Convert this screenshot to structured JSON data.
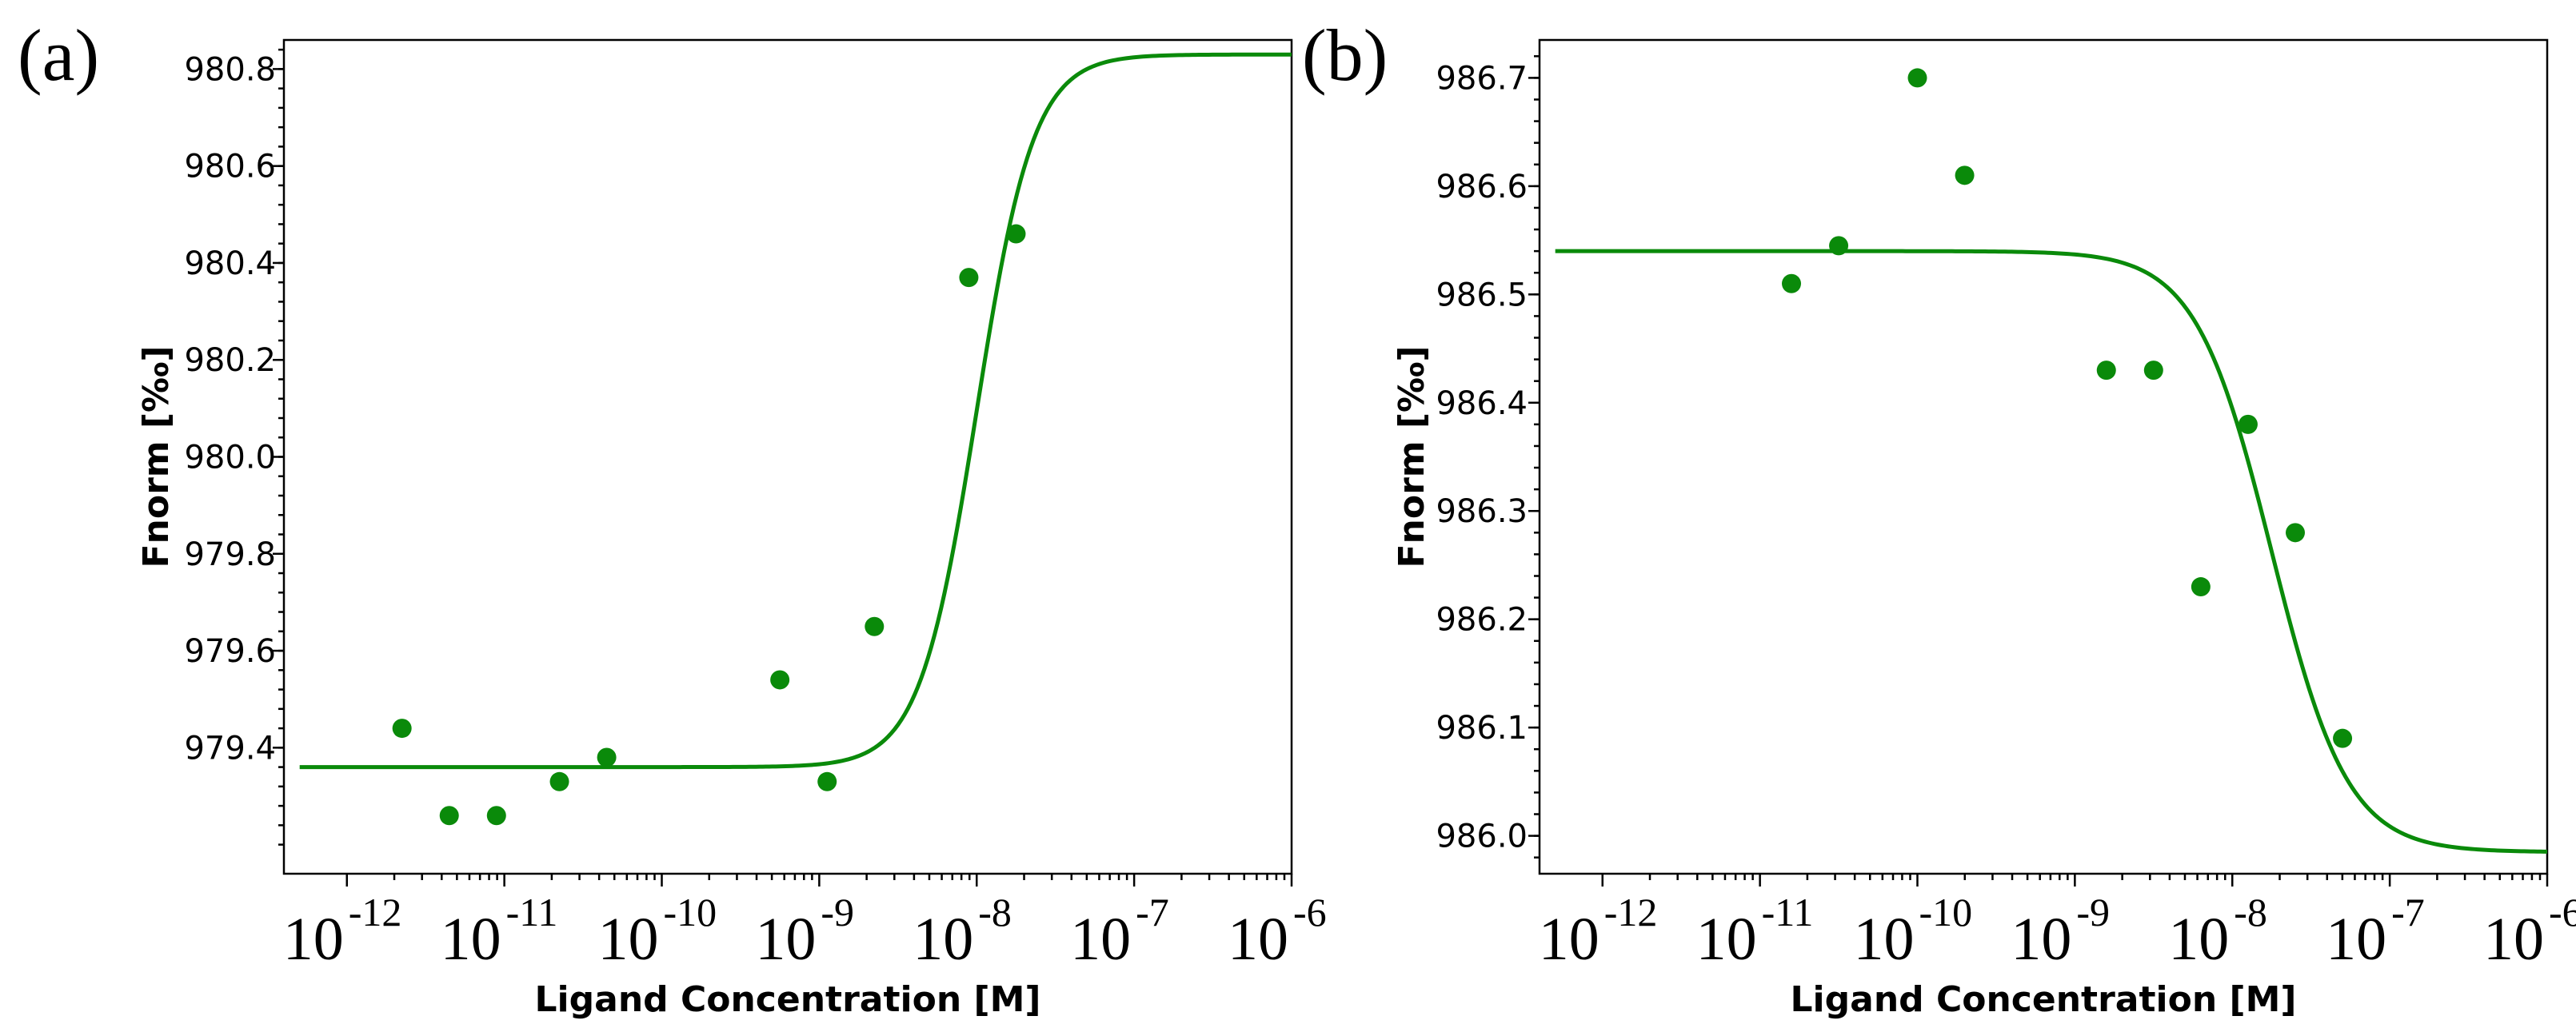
{
  "figure": {
    "colors": {
      "series": "#0a8a0a",
      "axes": "#000000"
    },
    "panels": [
      {
        "label": "(a)",
        "xlabel": "Ligand Concentration [M]",
        "ylabel": "Fnorm [‰]",
        "yticks": [
          "979.4",
          "979.6",
          "979.8",
          "980.0",
          "980.2",
          "980.4",
          "980.6",
          "980.8"
        ],
        "xticks": [
          {
            "base": "10",
            "exp": "-12"
          },
          {
            "base": "10",
            "exp": "-11"
          },
          {
            "base": "10",
            "exp": "-10"
          },
          {
            "base": "10",
            "exp": "-9"
          },
          {
            "base": "10",
            "exp": "-8"
          },
          {
            "base": "10",
            "exp": "-7"
          },
          {
            "base": "10",
            "exp": "-6"
          }
        ]
      },
      {
        "label": "(b)",
        "xlabel": "Ligand Concentration [M]",
        "ylabel": "Fnorm [‰]",
        "yticks": [
          "986.0",
          "986.1",
          "986.2",
          "986.3",
          "986.4",
          "986.5",
          "986.6",
          "986.7"
        ],
        "xticks": [
          {
            "base": "10",
            "exp": "-12"
          },
          {
            "base": "10",
            "exp": "-11"
          },
          {
            "base": "10",
            "exp": "-10"
          },
          {
            "base": "10",
            "exp": "-9"
          },
          {
            "base": "10",
            "exp": "-8"
          },
          {
            "base": "10",
            "exp": "-7"
          },
          {
            "base": "10",
            "exp": "-6"
          }
        ]
      }
    ]
  },
  "chart_data": [
    {
      "type": "scatter",
      "title": "(a)",
      "xlabel": "Ligand Concentration [M]",
      "ylabel": "Fnorm [‰]",
      "xscale": "log10",
      "xlim": [
        -12.4,
        -6
      ],
      "ylim": [
        979.14,
        980.86
      ],
      "series": [
        {
          "name": "data",
          "points": [
            {
              "x": -11.65,
              "y": 979.44
            },
            {
              "x": -11.35,
              "y": 979.26
            },
            {
              "x": -11.05,
              "y": 979.26
            },
            {
              "x": -10.65,
              "y": 979.33
            },
            {
              "x": -10.35,
              "y": 979.38
            },
            {
              "x": -9.25,
              "y": 979.54
            },
            {
              "x": -8.95,
              "y": 979.33
            },
            {
              "x": -8.65,
              "y": 979.65
            },
            {
              "x": -8.05,
              "y": 980.37
            },
            {
              "x": -7.75,
              "y": 980.46
            }
          ]
        },
        {
          "name": "fit",
          "model": "sigmoid",
          "x_range": [
            -12.3,
            -6
          ],
          "bottom": 979.36,
          "top": 980.83,
          "log_ec50": -8.0,
          "slope": 2.4
        }
      ]
    },
    {
      "type": "scatter",
      "title": "(b)",
      "xlabel": "Ligand Concentration [M]",
      "ylabel": "Fnorm [‰]",
      "xscale": "log10",
      "xlim": [
        -12.4,
        -6
      ],
      "ylim": [
        985.965,
        986.735
      ],
      "series": [
        {
          "name": "data",
          "points": [
            {
              "x": -10.8,
              "y": 986.51
            },
            {
              "x": -10.5,
              "y": 986.545
            },
            {
              "x": -10.0,
              "y": 986.7
            },
            {
              "x": -9.7,
              "y": 986.61
            },
            {
              "x": -8.8,
              "y": 986.43
            },
            {
              "x": -8.5,
              "y": 986.43
            },
            {
              "x": -8.2,
              "y": 986.23
            },
            {
              "x": -7.9,
              "y": 986.38
            },
            {
              "x": -7.6,
              "y": 986.28
            },
            {
              "x": -7.3,
              "y": 986.09
            }
          ]
        },
        {
          "name": "fit",
          "model": "sigmoid",
          "x_range": [
            -12.3,
            -6
          ],
          "bottom": 985.985,
          "top": 986.54,
          "log_ec50": -7.75,
          "slope": -1.8
        }
      ]
    }
  ]
}
